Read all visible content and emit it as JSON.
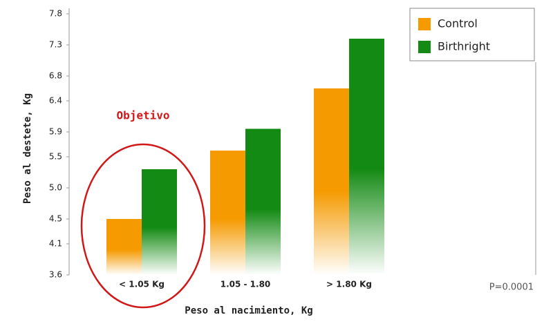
{
  "chart_data": {
    "type": "bar",
    "ylabel": "Peso al destete, Kg",
    "xlabel": "Peso al nacimiento, Kg",
    "annotations": [
      "Objetivo",
      "P=0.0001"
    ],
    "categories": [
      "< 1.05 Kg",
      "1.05 - 1.80",
      "> 1.80 Kg"
    ],
    "series": [
      {
        "name": "Control",
        "color": "#f59a00",
        "values": [
          4.5,
          5.6,
          6.6
        ]
      },
      {
        "name": "Birthright",
        "color": "#138a13",
        "values": [
          5.3,
          5.95,
          7.4
        ]
      }
    ],
    "ylim": [
      3.6,
      7.8
    ],
    "yticks": [
      3.6,
      4.1,
      4.5,
      {
        "value": 5,
        "label": "5.0"
      },
      5.5,
      5.9,
      6.4,
      6.8,
      7.3,
      7.8
    ],
    "grid": false,
    "legend": "upper right"
  }
}
